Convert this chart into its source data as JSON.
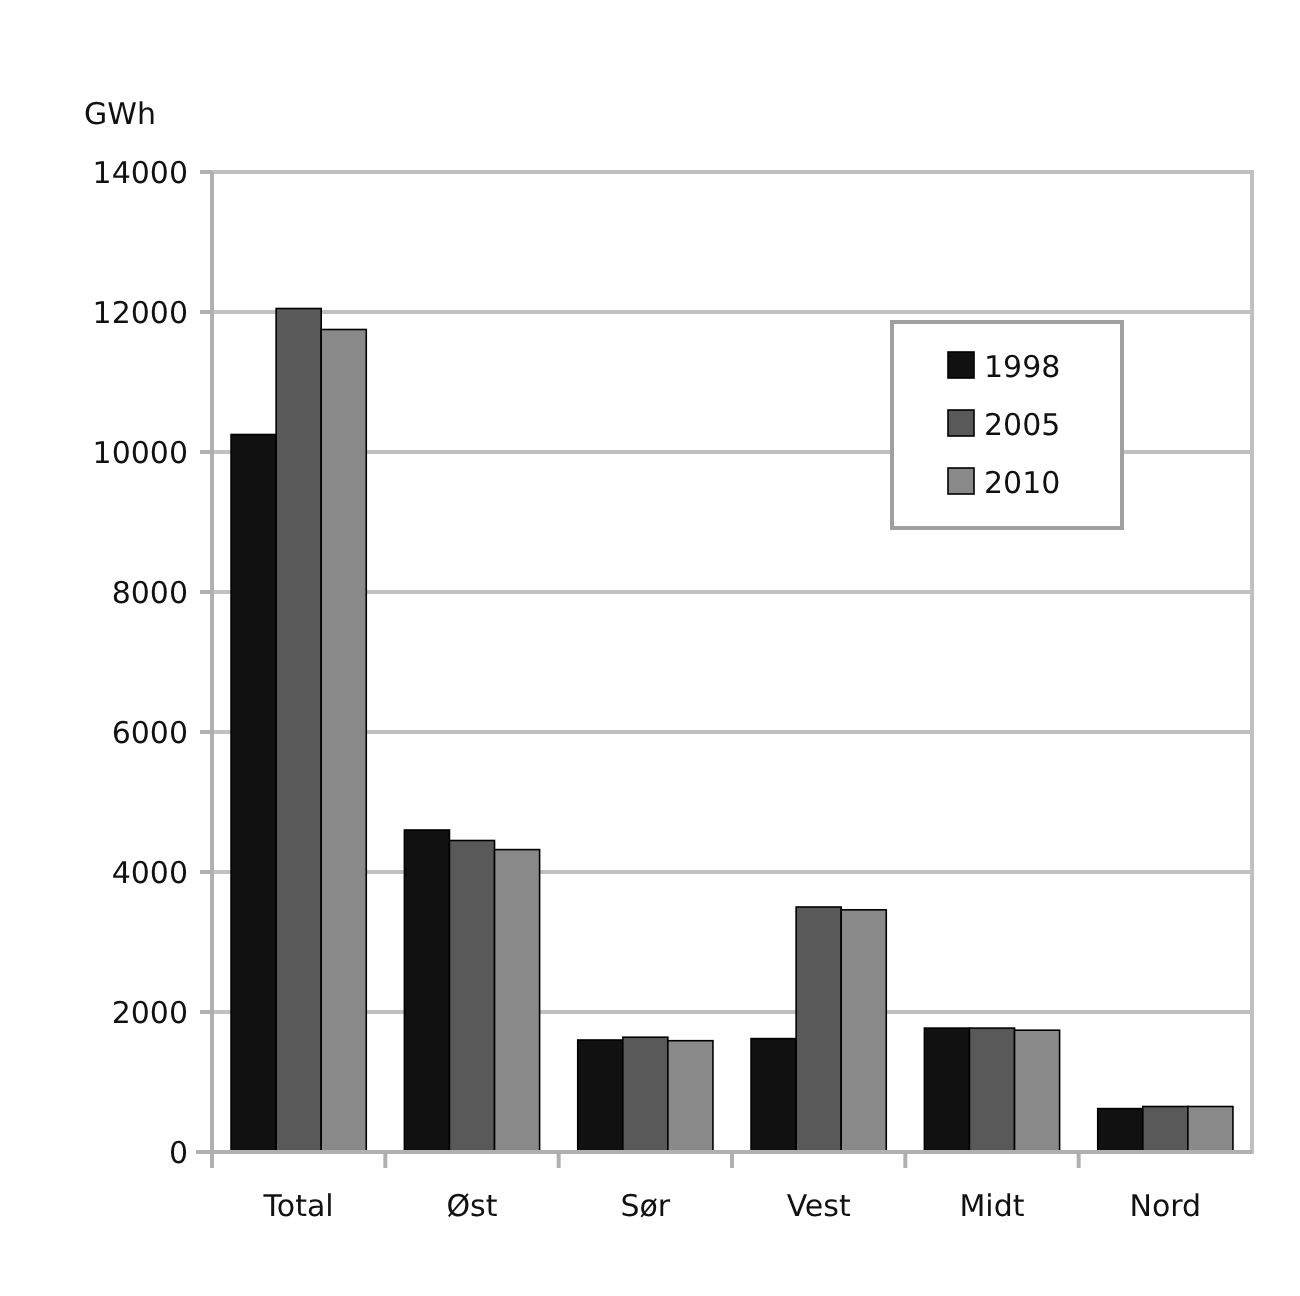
{
  "chart_data": {
    "type": "bar",
    "ylabel": "GWh",
    "categories": [
      "Total",
      "Øst",
      "Sør",
      "Vest",
      "Midt",
      "Nord"
    ],
    "series": [
      {
        "name": "1998",
        "color": "#111111",
        "values": [
          10250,
          4600,
          1600,
          1620,
          1770,
          620
        ]
      },
      {
        "name": "2005",
        "color": "#595959",
        "values": [
          12050,
          4450,
          1640,
          3500,
          1770,
          650
        ]
      },
      {
        "name": "2010",
        "color": "#898989",
        "values": [
          11750,
          4320,
          1590,
          3460,
          1740,
          650
        ]
      }
    ],
    "ylim": [
      0,
      14000
    ],
    "yticks": [
      0,
      2000,
      4000,
      6000,
      8000,
      10000,
      12000,
      14000
    ],
    "grid": "y",
    "legend": "top right"
  }
}
